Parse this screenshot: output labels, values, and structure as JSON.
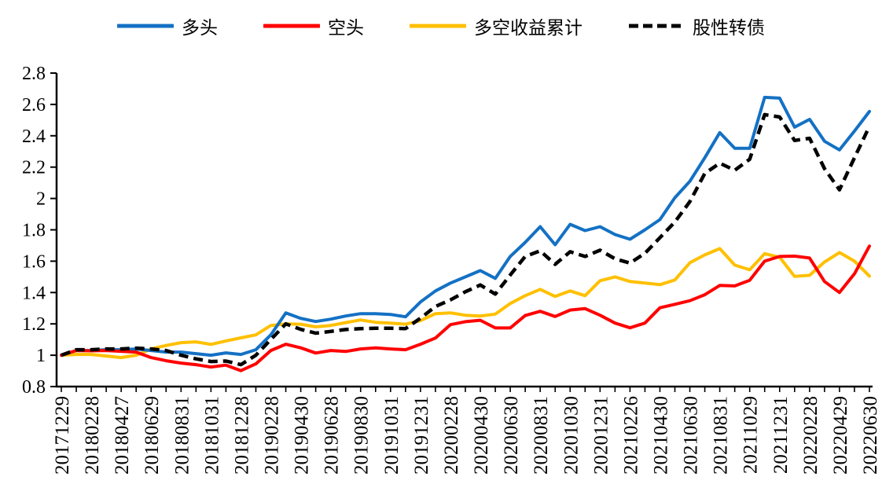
{
  "chart_data": {
    "type": "line",
    "title": "",
    "xlabel": "",
    "ylabel": "",
    "grid": false,
    "legend_position": "top",
    "ylim": [
      0.8,
      2.8
    ],
    "y_ticks": [
      "0.8",
      "1",
      "1.2",
      "1.4",
      "1.6",
      "1.8",
      "2",
      "2.2",
      "2.4",
      "2.6",
      "2.8"
    ],
    "x_tick_labels": [
      "20171229",
      "20180228",
      "20180427",
      "20180629",
      "20180831",
      "20181031",
      "20181228",
      "20190228",
      "20190430",
      "20190628",
      "20190830",
      "20191031",
      "20191231",
      "20200228",
      "20200430",
      "20200630",
      "20200831",
      "20201030",
      "20201231",
      "20210226",
      "20210430",
      "20210630",
      "20210831",
      "20211029",
      "20211231",
      "20220228",
      "20220429",
      "20220630"
    ],
    "note_points_per_label": 2,
    "n_points": 55,
    "axis_color": "#000000",
    "series": [
      {
        "name": "多空收益累计",
        "legend_order": 2,
        "color": "#FFC000",
        "style": "solid",
        "values": [
          1.0,
          1.005,
          1.005,
          0.995,
          0.985,
          1.0,
          1.04,
          1.062,
          1.08,
          1.085,
          1.069,
          1.091,
          1.111,
          1.13,
          1.19,
          1.2,
          1.198,
          1.181,
          1.19,
          1.208,
          1.225,
          1.21,
          1.205,
          1.198,
          1.221,
          1.265,
          1.27,
          1.255,
          1.25,
          1.262,
          1.33,
          1.38,
          1.42,
          1.375,
          1.41,
          1.38,
          1.475,
          1.5,
          1.47,
          1.46,
          1.45,
          1.48,
          1.59,
          1.64,
          1.68,
          1.575,
          1.545,
          1.648,
          1.625,
          1.503,
          1.51,
          1.595,
          1.655,
          1.6,
          1.505
        ]
      },
      {
        "name": "多头",
        "legend_order": 0,
        "color": "#1471C4",
        "style": "solid",
        "values": [
          1.0,
          1.03,
          1.03,
          1.035,
          1.035,
          1.04,
          1.03,
          1.02,
          1.02,
          1.01,
          1.0,
          1.015,
          1.005,
          1.035,
          1.13,
          1.27,
          1.235,
          1.215,
          1.23,
          1.25,
          1.265,
          1.265,
          1.26,
          1.245,
          1.34,
          1.41,
          1.46,
          1.5,
          1.54,
          1.49,
          1.63,
          1.72,
          1.82,
          1.705,
          1.835,
          1.795,
          1.82,
          1.77,
          1.74,
          1.8,
          1.865,
          2.005,
          2.11,
          2.26,
          2.42,
          2.32,
          2.32,
          2.645,
          2.64,
          2.455,
          2.505,
          2.365,
          2.31,
          2.43,
          2.555
        ]
      },
      {
        "name": "空头",
        "legend_order": 1,
        "color": "#FF0000",
        "style": "solid",
        "values": [
          1.0,
          1.03,
          1.028,
          1.03,
          1.025,
          1.02,
          0.985,
          0.965,
          0.95,
          0.94,
          0.925,
          0.937,
          0.902,
          0.945,
          1.03,
          1.07,
          1.047,
          1.014,
          1.03,
          1.024,
          1.04,
          1.047,
          1.04,
          1.035,
          1.07,
          1.11,
          1.195,
          1.214,
          1.223,
          1.174,
          1.174,
          1.253,
          1.28,
          1.247,
          1.288,
          1.297,
          1.255,
          1.205,
          1.175,
          1.205,
          1.303,
          1.325,
          1.348,
          1.386,
          1.445,
          1.442,
          1.478,
          1.6,
          1.63,
          1.632,
          1.62,
          1.47,
          1.4,
          1.52,
          1.696
        ]
      },
      {
        "name": "股性转债",
        "legend_order": 3,
        "color": "#000000",
        "style": "dashed",
        "values": [
          1.0,
          1.035,
          1.035,
          1.04,
          1.04,
          1.045,
          1.04,
          1.03,
          1.0,
          0.977,
          0.96,
          0.963,
          0.94,
          1.0,
          1.1,
          1.2,
          1.165,
          1.141,
          1.152,
          1.164,
          1.17,
          1.172,
          1.172,
          1.17,
          1.236,
          1.311,
          1.353,
          1.405,
          1.448,
          1.39,
          1.512,
          1.63,
          1.666,
          1.58,
          1.66,
          1.63,
          1.67,
          1.615,
          1.588,
          1.65,
          1.75,
          1.85,
          1.98,
          2.16,
          2.225,
          2.18,
          2.25,
          2.535,
          2.52,
          2.37,
          2.384,
          2.19,
          2.055,
          2.26,
          2.46
        ]
      }
    ]
  }
}
